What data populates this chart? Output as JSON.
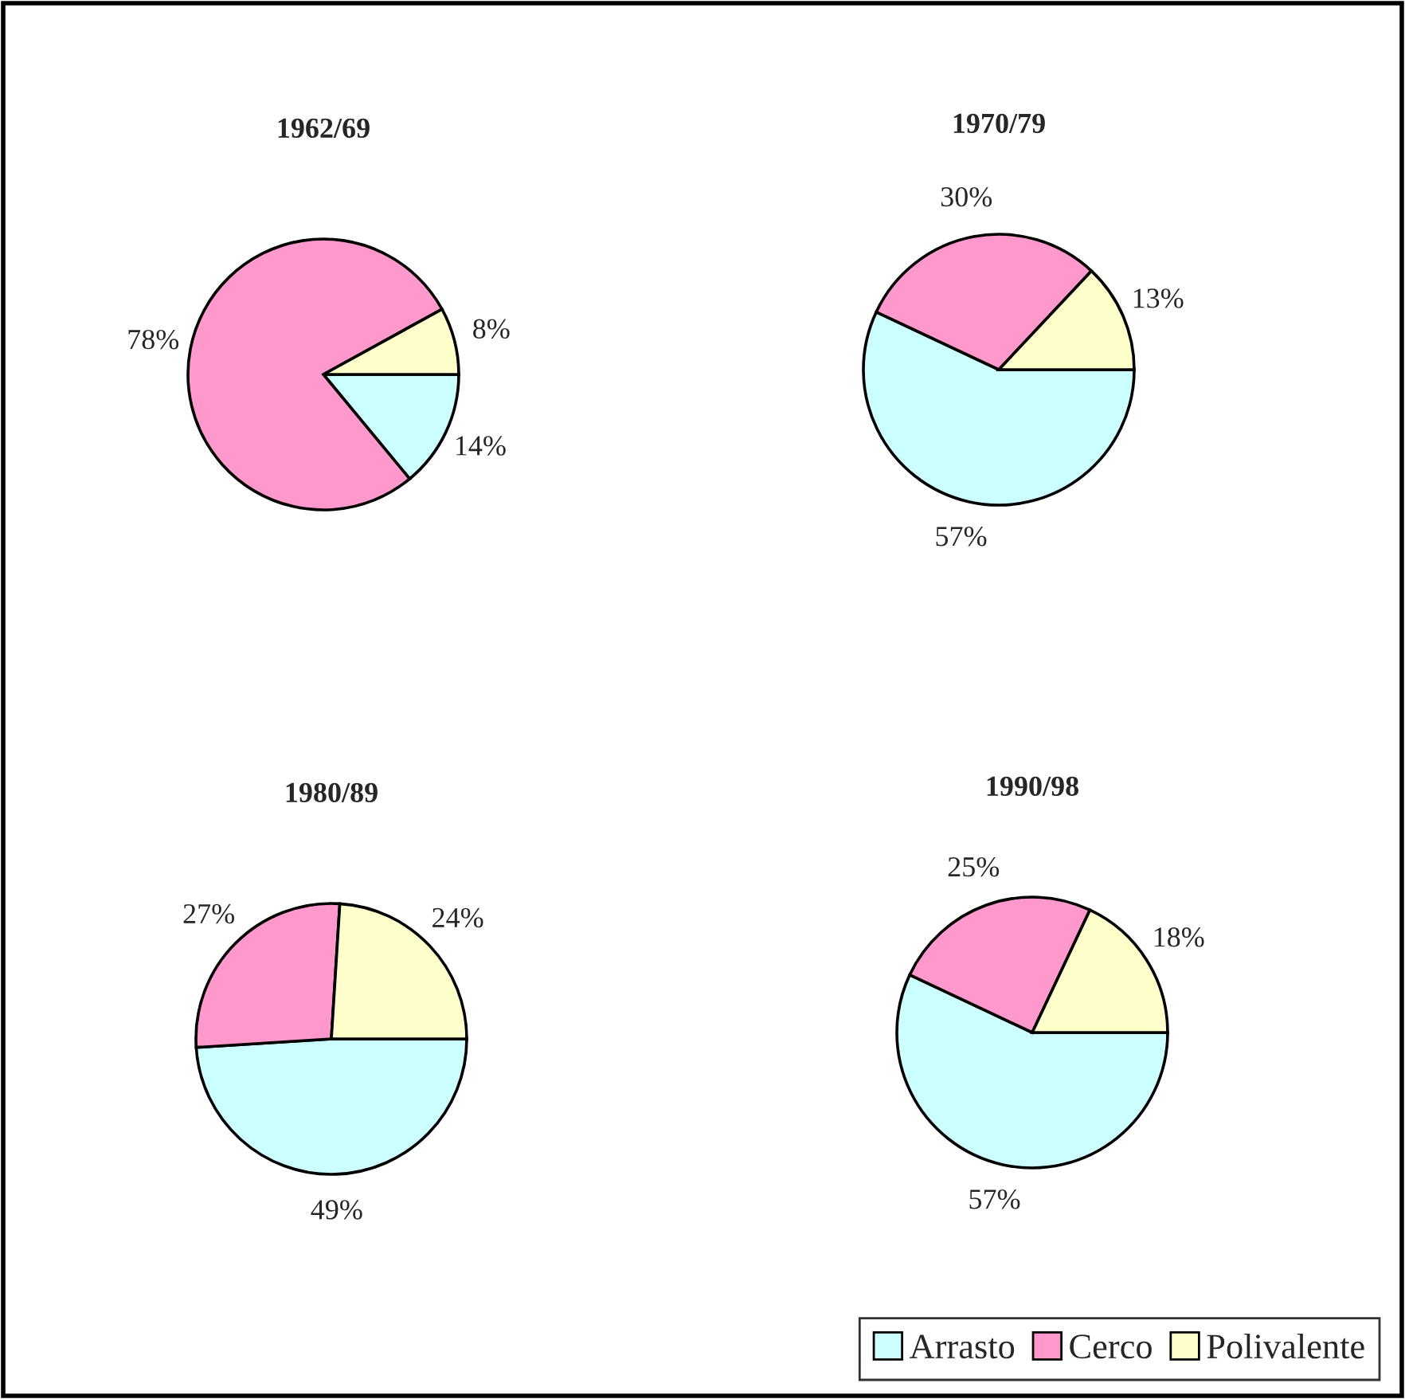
{
  "chart_data": [
    {
      "type": "pie",
      "title": "1962/69",
      "categories": [
        "Arrasto",
        "Cerco",
        "Polivalente"
      ],
      "values": [
        14,
        78,
        8
      ],
      "value_labels": [
        "14%",
        "78%",
        "8%"
      ],
      "colors": [
        "#ccffff",
        "#ff99cc",
        "#ffffcc"
      ],
      "legend": "bottom right"
    },
    {
      "type": "pie",
      "title": "1970/79",
      "categories": [
        null,
        null,
        null
      ],
      "values": [
        57,
        30,
        13
      ],
      "value_labels": [
        "57%",
        "30%",
        "13%"
      ],
      "colors": [
        "#ccffff",
        "#ff99cc",
        "#ffffcc"
      ],
      "legend": false
    },
    {
      "type": "pie",
      "title": "1980/89",
      "categories": [
        null,
        null,
        null
      ],
      "values": [
        49,
        27,
        24
      ],
      "value_labels": [
        "49%",
        "27%",
        "24%"
      ],
      "colors": [
        "#ccffff",
        "#ff99cc",
        "#ffffcc"
      ],
      "legend": false
    },
    {
      "type": "pie",
      "title": "1990/98",
      "categories": [
        null,
        null,
        null
      ],
      "values": [
        57,
        25,
        18
      ],
      "value_labels": [
        "57%",
        "25%",
        "18%"
      ],
      "colors": [
        "#ccffff",
        "#ff99cc",
        "#ffffcc"
      ],
      "legend": false
    }
  ]
}
